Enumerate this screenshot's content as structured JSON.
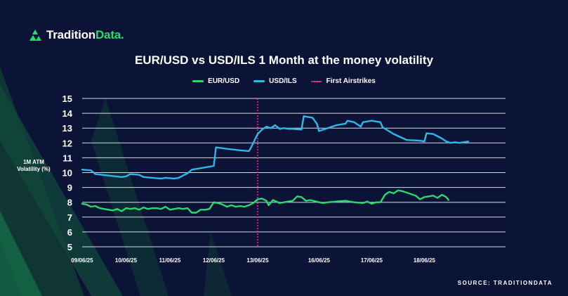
{
  "brand": {
    "logo_main": "Tradition",
    "logo_accent": "Data.",
    "icon": "tradition-data-logo-icon",
    "accent_color": "#2bd96b"
  },
  "chart_data": {
    "type": "line",
    "title": "EUR/USD vs USD/ILS 1 Month at the money volatility",
    "ylabel": "1M ATM Volatility (%)",
    "xlabel": "",
    "ylim": [
      5,
      15
    ],
    "yticks": [
      5,
      6,
      7,
      8,
      9,
      10,
      11,
      12,
      13,
      14,
      15
    ],
    "xlim": [
      0,
      9.65
    ],
    "xticks": [
      {
        "pos": 0,
        "label": "09/06/25"
      },
      {
        "pos": 1,
        "label": "10/06/25"
      },
      {
        "pos": 2,
        "label": "11/06/25"
      },
      {
        "pos": 3,
        "label": "12/06/25"
      },
      {
        "pos": 4,
        "label": "13/06/25"
      },
      {
        "pos": 5.4,
        "label": "16/06/25"
      },
      {
        "pos": 6.6,
        "label": "17/06/25"
      },
      {
        "pos": 7.8,
        "label": "18/06/25"
      }
    ],
    "grid": true,
    "legend_placement": "top-center",
    "series": [
      {
        "name": "EUR/USD",
        "color": "#2bd96b",
        "points": [
          [
            0,
            7.9
          ],
          [
            0.1,
            7.85
          ],
          [
            0.2,
            7.7
          ],
          [
            0.3,
            7.75
          ],
          [
            0.4,
            7.6
          ],
          [
            0.5,
            7.55
          ],
          [
            0.6,
            7.5
          ],
          [
            0.7,
            7.45
          ],
          [
            0.8,
            7.55
          ],
          [
            0.9,
            7.4
          ],
          [
            1.0,
            7.6
          ],
          [
            1.1,
            7.55
          ],
          [
            1.2,
            7.6
          ],
          [
            1.3,
            7.5
          ],
          [
            1.4,
            7.65
          ],
          [
            1.5,
            7.55
          ],
          [
            1.6,
            7.6
          ],
          [
            1.7,
            7.6
          ],
          [
            1.8,
            7.55
          ],
          [
            1.9,
            7.7
          ],
          [
            2.0,
            7.5
          ],
          [
            2.1,
            7.55
          ],
          [
            2.2,
            7.6
          ],
          [
            2.3,
            7.55
          ],
          [
            2.4,
            7.6
          ],
          [
            2.5,
            7.3
          ],
          [
            2.6,
            7.3
          ],
          [
            2.7,
            7.5
          ],
          [
            2.8,
            7.5
          ],
          [
            2.9,
            7.55
          ],
          [
            3.0,
            8.0
          ],
          [
            3.1,
            7.95
          ],
          [
            3.2,
            7.85
          ],
          [
            3.3,
            7.7
          ],
          [
            3.4,
            7.8
          ],
          [
            3.5,
            7.7
          ],
          [
            3.6,
            7.75
          ],
          [
            3.7,
            7.7
          ],
          [
            3.8,
            7.8
          ],
          [
            3.9,
            7.95
          ],
          [
            4.0,
            8.2
          ],
          [
            4.1,
            8.25
          ],
          [
            4.2,
            8.1
          ],
          [
            4.25,
            7.8
          ],
          [
            4.35,
            8.15
          ],
          [
            4.5,
            7.95
          ],
          [
            4.7,
            8.05
          ],
          [
            4.8,
            8.1
          ],
          [
            4.9,
            8.4
          ],
          [
            5.0,
            8.35
          ],
          [
            5.1,
            8.1
          ],
          [
            5.2,
            8.15
          ],
          [
            5.4,
            8.0
          ],
          [
            5.5,
            7.95
          ],
          [
            5.6,
            8.0
          ],
          [
            5.8,
            8.05
          ],
          [
            6.0,
            8.1
          ],
          [
            6.2,
            8.0
          ],
          [
            6.4,
            7.95
          ],
          [
            6.5,
            8.05
          ],
          [
            6.6,
            7.9
          ],
          [
            6.7,
            8.0
          ],
          [
            6.8,
            8.0
          ],
          [
            6.9,
            8.5
          ],
          [
            7.0,
            8.7
          ],
          [
            7.1,
            8.6
          ],
          [
            7.2,
            8.8
          ],
          [
            7.3,
            8.75
          ],
          [
            7.5,
            8.55
          ],
          [
            7.6,
            8.45
          ],
          [
            7.7,
            8.2
          ],
          [
            7.8,
            8.35
          ],
          [
            7.9,
            8.4
          ],
          [
            8.0,
            8.45
          ],
          [
            8.1,
            8.3
          ],
          [
            8.2,
            8.5
          ],
          [
            8.3,
            8.35
          ],
          [
            8.35,
            8.15
          ]
        ]
      },
      {
        "name": "USD/ILS",
        "color": "#2eb7e8",
        "points": [
          [
            0,
            10.2
          ],
          [
            0.2,
            10.15
          ],
          [
            0.3,
            9.9
          ],
          [
            0.6,
            9.8
          ],
          [
            0.9,
            9.7
          ],
          [
            1.0,
            9.75
          ],
          [
            1.1,
            9.9
          ],
          [
            1.3,
            9.85
          ],
          [
            1.4,
            9.7
          ],
          [
            1.6,
            9.65
          ],
          [
            1.8,
            9.6
          ],
          [
            1.9,
            9.65
          ],
          [
            2.1,
            9.6
          ],
          [
            2.2,
            9.65
          ],
          [
            2.3,
            9.8
          ],
          [
            2.4,
            9.95
          ],
          [
            2.5,
            10.2
          ],
          [
            2.7,
            10.3
          ],
          [
            2.9,
            10.4
          ],
          [
            3.0,
            10.45
          ],
          [
            3.05,
            11.7
          ],
          [
            3.3,
            11.6
          ],
          [
            3.6,
            11.5
          ],
          [
            3.8,
            11.45
          ],
          [
            3.85,
            11.7
          ],
          [
            4.0,
            12.6
          ],
          [
            4.1,
            12.9
          ],
          [
            4.2,
            13.1
          ],
          [
            4.3,
            13.0
          ],
          [
            4.4,
            13.2
          ],
          [
            4.5,
            12.95
          ],
          [
            4.6,
            13.0
          ],
          [
            4.7,
            12.95
          ],
          [
            4.8,
            12.95
          ],
          [
            5.0,
            12.9
          ],
          [
            5.05,
            13.8
          ],
          [
            5.25,
            13.7
          ],
          [
            5.35,
            13.3
          ],
          [
            5.4,
            12.8
          ],
          [
            5.6,
            13.0
          ],
          [
            5.8,
            13.2
          ],
          [
            6.0,
            13.3
          ],
          [
            6.05,
            13.5
          ],
          [
            6.2,
            13.4
          ],
          [
            6.35,
            13.1
          ],
          [
            6.4,
            13.4
          ],
          [
            6.6,
            13.5
          ],
          [
            6.8,
            13.4
          ],
          [
            6.85,
            13.05
          ],
          [
            7.1,
            12.6
          ],
          [
            7.4,
            12.2
          ],
          [
            7.7,
            12.15
          ],
          [
            7.8,
            12.1
          ],
          [
            7.85,
            12.65
          ],
          [
            8.0,
            12.6
          ],
          [
            8.2,
            12.3
          ],
          [
            8.3,
            12.1
          ],
          [
            8.4,
            12.0
          ],
          [
            8.5,
            12.05
          ],
          [
            8.6,
            12.0
          ],
          [
            8.7,
            12.05
          ],
          [
            8.8,
            12.1
          ]
        ]
      }
    ],
    "annotations": [
      {
        "name": "First Airstrikes",
        "x": 4.0,
        "color": "#e0349a",
        "style": "dotted"
      }
    ]
  },
  "source": {
    "label": "SOURCE: TRADITIONDATA"
  }
}
